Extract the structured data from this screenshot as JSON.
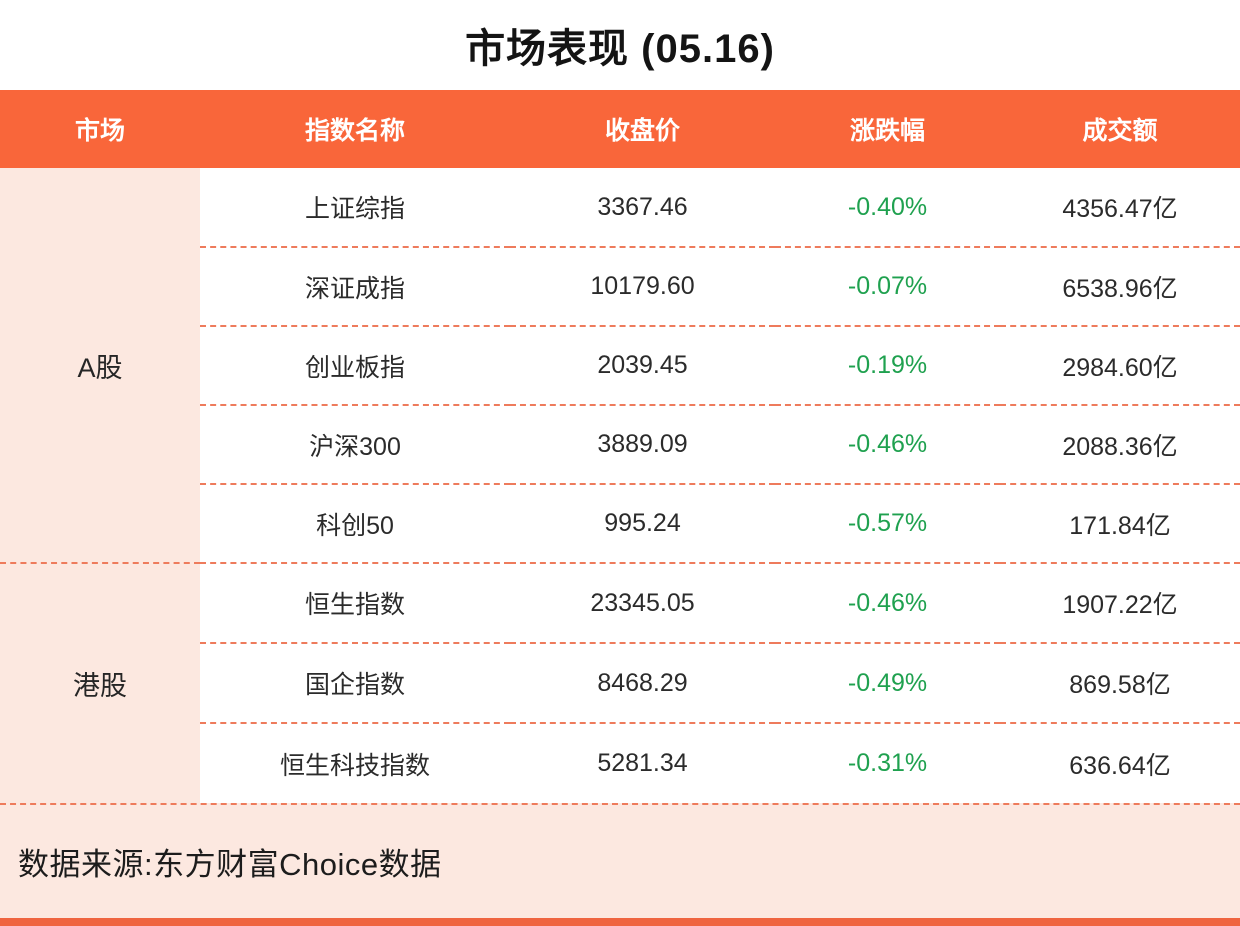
{
  "title": "市场表现 (05.16)",
  "colors": {
    "accent_orange": "#F9663A",
    "bottom_bar_orange": "#EF6440",
    "light_pink": "#FCE8E0",
    "negative_green": "#1FA14F",
    "dashed_line": "#EE7B5C",
    "text_dark": "#2B2B2B"
  },
  "chart_data": {
    "type": "table",
    "title": "市场表现 (05.16)",
    "columns": [
      "市场",
      "指数名称",
      "收盘价",
      "涨跌幅",
      "成交额"
    ],
    "groups": [
      {
        "market": "A股",
        "rows": [
          {
            "name": "上证综指",
            "close": "3367.46",
            "change": "-0.40%",
            "turnover": "4356.47亿"
          },
          {
            "name": "深证成指",
            "close": "10179.60",
            "change": "-0.07%",
            "turnover": "6538.96亿"
          },
          {
            "name": "创业板指",
            "close": "2039.45",
            "change": "-0.19%",
            "turnover": "2984.60亿"
          },
          {
            "name": "沪深300",
            "close": "3889.09",
            "change": "-0.46%",
            "turnover": "2088.36亿"
          },
          {
            "name": "科创50",
            "close": "995.24",
            "change": "-0.57%",
            "turnover": "171.84亿"
          }
        ]
      },
      {
        "market": "港股",
        "rows": [
          {
            "name": "恒生指数",
            "close": "23345.05",
            "change": "-0.46%",
            "turnover": "1907.22亿"
          },
          {
            "name": "国企指数",
            "close": "8468.29",
            "change": "-0.49%",
            "turnover": "869.58亿"
          },
          {
            "name": "恒生科技指数",
            "close": "5281.34",
            "change": "-0.31%",
            "turnover": "636.64亿"
          }
        ]
      }
    ]
  },
  "footer": {
    "source_text": "数据来源:东方财富Choice数据"
  }
}
